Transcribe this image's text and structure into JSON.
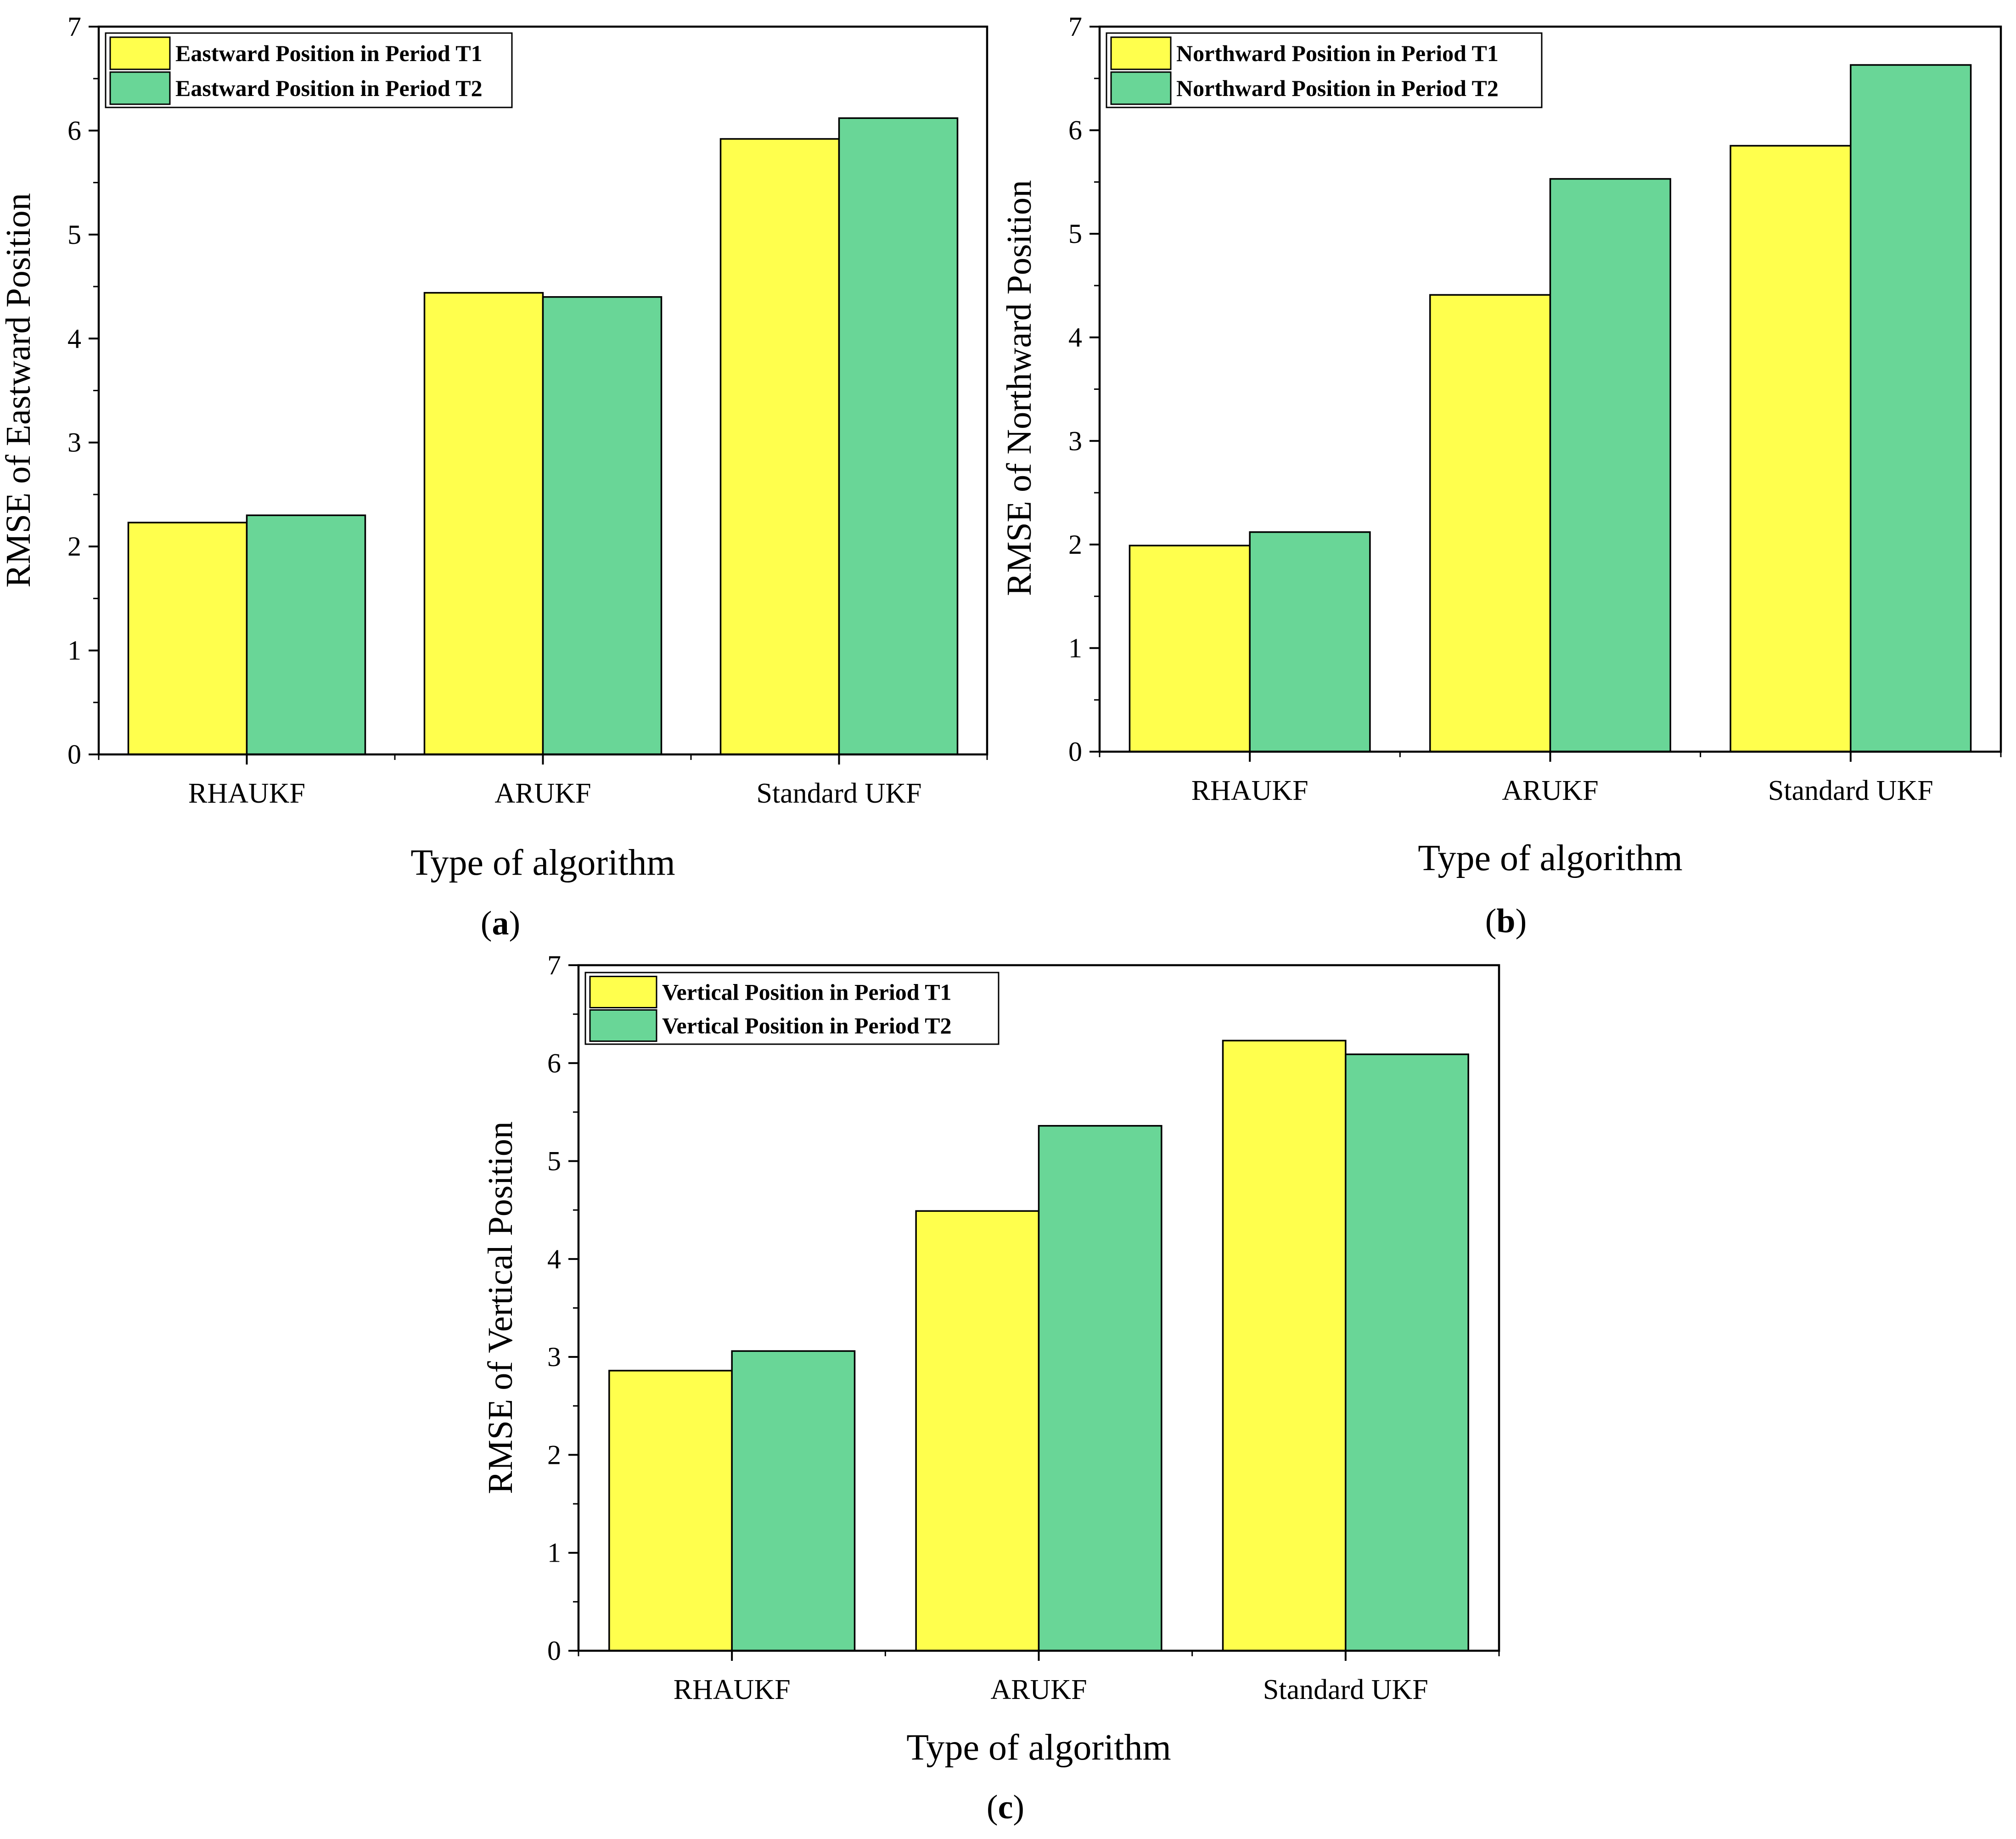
{
  "chart_data": [
    {
      "type": "bar",
      "panel_label": "a",
      "categories": [
        "RHAUKF",
        "ARUKF",
        "Standard UKF"
      ],
      "series": [
        {
          "name": "Eastward Position in Period T1",
          "color": "#FFFF4D",
          "values": [
            2.23,
            4.44,
            5.92
          ]
        },
        {
          "name": "Eastward Position in Period T2",
          "color": "#69D697",
          "values": [
            2.3,
            4.4,
            6.12
          ]
        }
      ],
      "title": "",
      "xlabel": "Type of algorithm",
      "ylabel": "RMSE of Eastward Position",
      "ylim": [
        0,
        7
      ],
      "yticks": [
        "0",
        "1",
        "2",
        "3",
        "4",
        "5",
        "6",
        "7"
      ],
      "grid": false,
      "legend_position": "top-left"
    },
    {
      "type": "bar",
      "panel_label": "b",
      "categories": [
        "RHAUKF",
        "ARUKF",
        "Standard UKF"
      ],
      "series": [
        {
          "name": "Northward Position in Period T1",
          "color": "#FFFF4D",
          "values": [
            1.99,
            4.41,
            5.85
          ]
        },
        {
          "name": "Northward Position in Period T2",
          "color": "#69D697",
          "values": [
            2.12,
            5.53,
            6.63
          ]
        }
      ],
      "title": "",
      "xlabel": "Type of algorithm",
      "ylabel": "RMSE of Northward Position",
      "ylim": [
        0,
        7
      ],
      "yticks": [
        "0",
        "1",
        "2",
        "3",
        "4",
        "5",
        "6",
        "7"
      ],
      "grid": false,
      "legend_position": "top-left"
    },
    {
      "type": "bar",
      "panel_label": "c",
      "categories": [
        "RHAUKF",
        "ARUKF",
        "Standard UKF"
      ],
      "series": [
        {
          "name": "Vertical Position in Period T1",
          "color": "#FFFF4D",
          "values": [
            2.86,
            4.49,
            6.23
          ]
        },
        {
          "name": "Vertical Position in Period T2",
          "color": "#69D697",
          "values": [
            3.06,
            5.36,
            6.09
          ]
        }
      ],
      "title": "",
      "xlabel": "Type of algorithm",
      "ylabel": "RMSE of Vertical Position",
      "ylim": [
        0,
        7
      ],
      "yticks": [
        "0",
        "1",
        "2",
        "3",
        "4",
        "5",
        "6",
        "7"
      ],
      "grid": false,
      "legend_position": "top-left"
    }
  ]
}
